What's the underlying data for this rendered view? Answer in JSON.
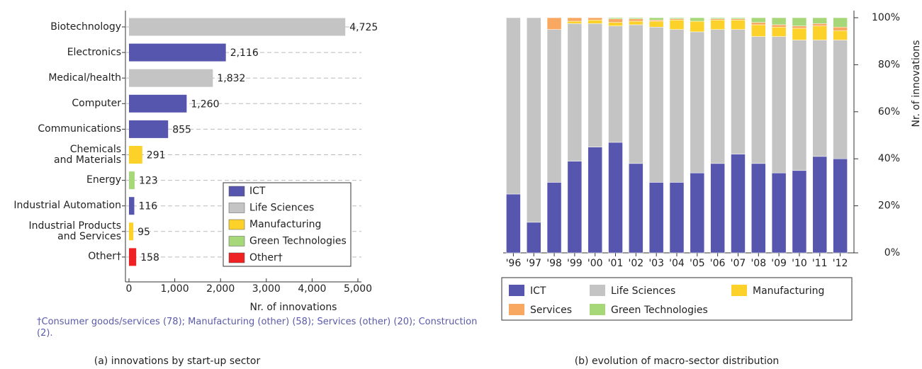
{
  "chart_data": [
    {
      "type": "hbar",
      "categories": [
        "Biotechnology",
        "Electronics",
        "Medical/health",
        "Computer",
        "Communications",
        "Chemicals\nand Materials",
        "Energy",
        "Industrial Automation",
        "Industrial Products\nand Services",
        "Other†"
      ],
      "values": [
        4725,
        2116,
        1832,
        1260,
        855,
        291,
        123,
        116,
        95,
        158
      ],
      "value_labels": [
        "4,725",
        "2,116",
        "1,832",
        "1,260",
        "855",
        "291",
        "123",
        "116",
        "95",
        "158"
      ],
      "colors": [
        "#c4c4c4",
        "#5656ae",
        "#c4c4c4",
        "#5656ae",
        "#5656ae",
        "#fcd22a",
        "#a6d87a",
        "#5656ae",
        "#fcd22a",
        "#ee2222"
      ],
      "legend": [
        {
          "name": "ICT",
          "color": "#5656ae"
        },
        {
          "name": "Life Sciences",
          "color": "#c4c4c4"
        },
        {
          "name": "Manufacturing",
          "color": "#fcd22a"
        },
        {
          "name": "Green Technologies",
          "color": "#a6d87a"
        },
        {
          "name": "Other†",
          "color": "#ee2222"
        }
      ],
      "xlim": [
        0,
        5000
      ],
      "xticks": [
        0,
        {
          "value": 1000,
          "label": "1,000"
        },
        {
          "value": 2000,
          "label": "2,000"
        },
        {
          "value": 3000,
          "label": "3,000"
        },
        {
          "value": 4000,
          "label": "4,000"
        },
        {
          "value": 5000,
          "label": "5,000"
        }
      ],
      "xlabel": "Nr. of innovations",
      "footnote": "†Consumer goods/services (78); Manufacturing (other) (58); Services (other) (20); Construction (2).",
      "caption": "(a) innovations by start-up sector"
    },
    {
      "type": "stacked-bar",
      "categories": [
        "'96",
        "'97",
        "'98",
        "'99",
        "'00",
        "'01",
        "'02",
        "'03",
        "'04",
        "'05",
        "'06",
        "'07",
        "'08",
        "'09",
        "'10",
        "'11",
        "'12"
      ],
      "series": [
        {
          "name": "ICT",
          "color": "#5656ae",
          "values": [
            25,
            13,
            30,
            39,
            45,
            47,
            38,
            30,
            30,
            34,
            38,
            42,
            38,
            34,
            35,
            41,
            40
          ]
        },
        {
          "name": "Life Sciences",
          "color": "#c4c4c4",
          "values": [
            75,
            87,
            65,
            58.5,
            52.5,
            49.5,
            59,
            66,
            65,
            60,
            57,
            53,
            54,
            58,
            55.5,
            49.5,
            50.5
          ]
        },
        {
          "name": "Manufacturing",
          "color": "#fcd22a",
          "values": [
            0,
            0,
            0,
            1,
            1.5,
            1.5,
            1.5,
            2.5,
            4,
            4.5,
            4,
            4,
            5,
            4,
            5,
            6,
            4
          ]
        },
        {
          "name": "Services",
          "color": "#f8a860",
          "values": [
            0,
            0,
            5,
            1.5,
            1,
            1.5,
            1,
            0.5,
            0.5,
            0,
            0.5,
            0.5,
            1,
            1,
            1,
            1,
            1.5
          ]
        },
        {
          "name": "Green Technologies",
          "color": "#a6d87a",
          "values": [
            0,
            0,
            0,
            0,
            0,
            0.5,
            0.5,
            1,
            0.5,
            1.5,
            0.5,
            0.5,
            2,
            3,
            3.5,
            2.5,
            4
          ]
        }
      ],
      "ylim": [
        0,
        100
      ],
      "yticks": [
        {
          "value": 0,
          "label": "0%"
        },
        {
          "value": 20,
          "label": "20%"
        },
        {
          "value": 40,
          "label": "40%"
        },
        {
          "value": 60,
          "label": "60%"
        },
        {
          "value": 80,
          "label": "80%"
        },
        {
          "value": 100,
          "label": "100%"
        }
      ],
      "ylabel": "Nr. of innovations",
      "caption": "(b) evolution of macro-sector distribution"
    }
  ]
}
